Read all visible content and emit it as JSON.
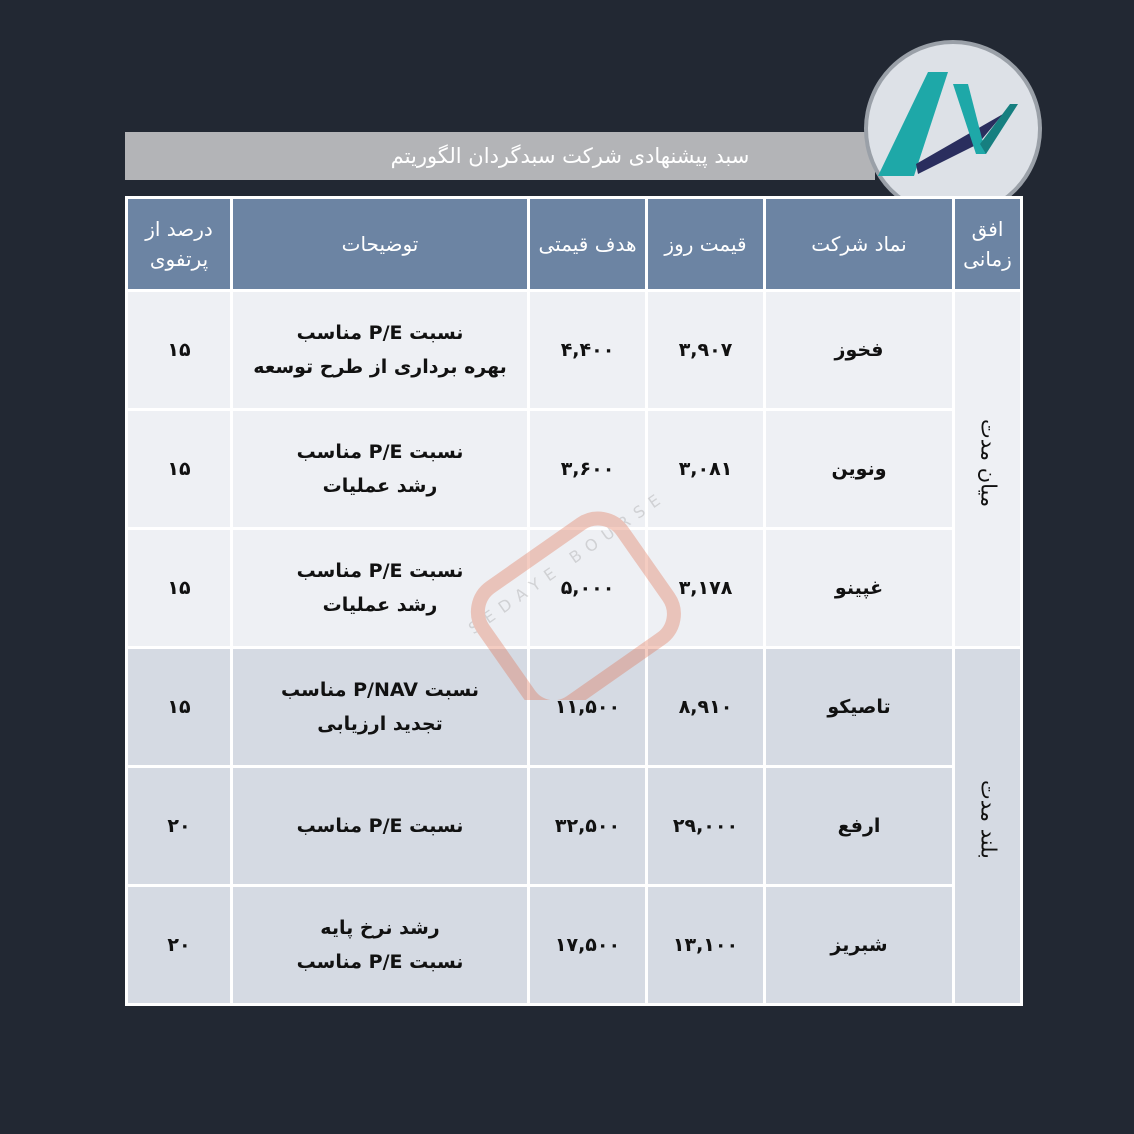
{
  "title": "سبد پیشنهادی شرکت سبدگردان الگوریتم",
  "logo": {
    "icon": "algorithm-logo",
    "colors": [
      "#1ea8a8",
      "#2a2e5e"
    ]
  },
  "watermark": "SEDAYE BOURSE",
  "headers": {
    "horizon": "افق زمانی",
    "symbol": "نماد شرکت",
    "price": "قیمت روز",
    "target": "هدف قیمتی",
    "desc": "توضیحات",
    "pct": "درصد از پرتفوی"
  },
  "groups": [
    {
      "horizon": "میان مدت",
      "rows": [
        {
          "symbol": "فخوز",
          "price": "۳,۹۰۷",
          "target": "۴,۴۰۰",
          "desc1": "نسبت P/E  مناسب",
          "desc2": "بهره برداری از طرح توسعه",
          "pct": "۱۵"
        },
        {
          "symbol": "ونوین",
          "price": "۳,۰۸۱",
          "target": "۳,۶۰۰",
          "desc1": "نسبت P/E  مناسب",
          "desc2": "رشد عملیات",
          "pct": "۱۵"
        },
        {
          "symbol": "غپینو",
          "price": "۳,۱۷۸",
          "target": "۵,۰۰۰",
          "desc1": "نسبت P/E  مناسب",
          "desc2": "رشد عملیات",
          "pct": "۱۵"
        }
      ]
    },
    {
      "horizon": "بلند مدت",
      "rows": [
        {
          "symbol": "تاصیکو",
          "price": "۸,۹۱۰",
          "target": "۱۱,۵۰۰",
          "desc1": "نسبت P/NAV  مناسب",
          "desc2": "تجدید ارزیابی",
          "pct": "۱۵"
        },
        {
          "symbol": "ارفع",
          "price": "۲۹,۰۰۰",
          "target": "۳۲,۵۰۰",
          "desc1": "نسبت P/E  مناسب",
          "desc2": "",
          "pct": "۲۰"
        },
        {
          "symbol": "شبریز",
          "price": "۱۳,۱۰۰",
          "target": "۱۷,۵۰۰",
          "desc1": "رشد نرخ پایه",
          "desc2": "نسبت P/E  مناسب",
          "pct": "۲۰"
        }
      ]
    }
  ]
}
